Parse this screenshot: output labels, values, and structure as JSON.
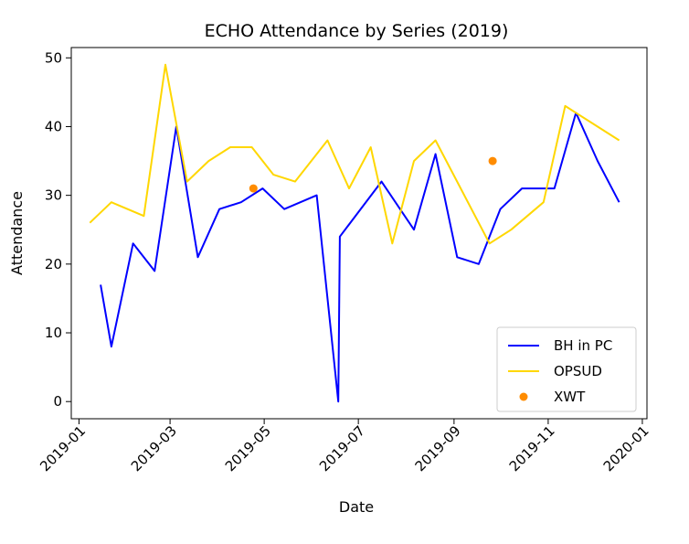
{
  "chart_data": {
    "type": "line",
    "title": "ECHO Attendance by Series (2019)",
    "xlabel": "Date",
    "ylabel": "Attendance",
    "ylim": [
      -2.5,
      51.5
    ],
    "xlim": [
      "2018-12-27",
      "2020-01-04"
    ],
    "grid": false,
    "legend_position": "lower-right",
    "x_ticks": [
      "2019-01-01",
      "2019-03-01",
      "2019-05-01",
      "2019-07-01",
      "2019-09-01",
      "2019-11-01",
      "2020-01-01"
    ],
    "x_tick_labels": [
      "2019-01",
      "2019-03",
      "2019-05",
      "2019-07",
      "2019-09",
      "2019-11",
      "2020-01"
    ],
    "y_ticks": [
      0,
      10,
      20,
      30,
      40,
      50
    ],
    "y_tick_labels": [
      "0",
      "10",
      "20",
      "30",
      "40",
      "50"
    ],
    "series": [
      {
        "name": "BH in PC",
        "kind": "line",
        "color": "#0000ff",
        "x": [
          "2019-01-15",
          "2019-01-22",
          "2019-02-05",
          "2019-02-19",
          "2019-03-05",
          "2019-03-19",
          "2019-04-02",
          "2019-04-16",
          "2019-04-30",
          "2019-05-14",
          "2019-06-04",
          "2019-06-18",
          "2019-06-19",
          "2019-07-16",
          "2019-08-06",
          "2019-08-20",
          "2019-09-03",
          "2019-09-17",
          "2019-10-01",
          "2019-10-15",
          "2019-11-05",
          "2019-11-19",
          "2019-12-03",
          "2019-12-17"
        ],
        "y": [
          17,
          8,
          23,
          19,
          40,
          21,
          28,
          29,
          31,
          28,
          30,
          0,
          24,
          32,
          25,
          36,
          21,
          20,
          28,
          31,
          31,
          42,
          35,
          29
        ]
      },
      {
        "name": "OPSUD",
        "kind": "line",
        "color": "#ffd700",
        "x": [
          "2019-01-08",
          "2019-01-22",
          "2019-02-12",
          "2019-02-26",
          "2019-03-12",
          "2019-03-26",
          "2019-04-09",
          "2019-04-23",
          "2019-05-07",
          "2019-05-21",
          "2019-06-11",
          "2019-06-25",
          "2019-07-09",
          "2019-07-23",
          "2019-08-06",
          "2019-08-20",
          "2019-09-24",
          "2019-10-08",
          "2019-10-29",
          "2019-11-12",
          "2019-12-17"
        ],
        "y": [
          26,
          29,
          27,
          49,
          32,
          35,
          37,
          37,
          33,
          32,
          38,
          31,
          37,
          23,
          35,
          38,
          23,
          25,
          29,
          43,
          38
        ]
      },
      {
        "name": "XWT",
        "kind": "scatter",
        "color": "#ff8c00",
        "x": [
          "2019-04-24",
          "2019-09-26"
        ],
        "y": [
          31,
          35
        ]
      }
    ]
  }
}
